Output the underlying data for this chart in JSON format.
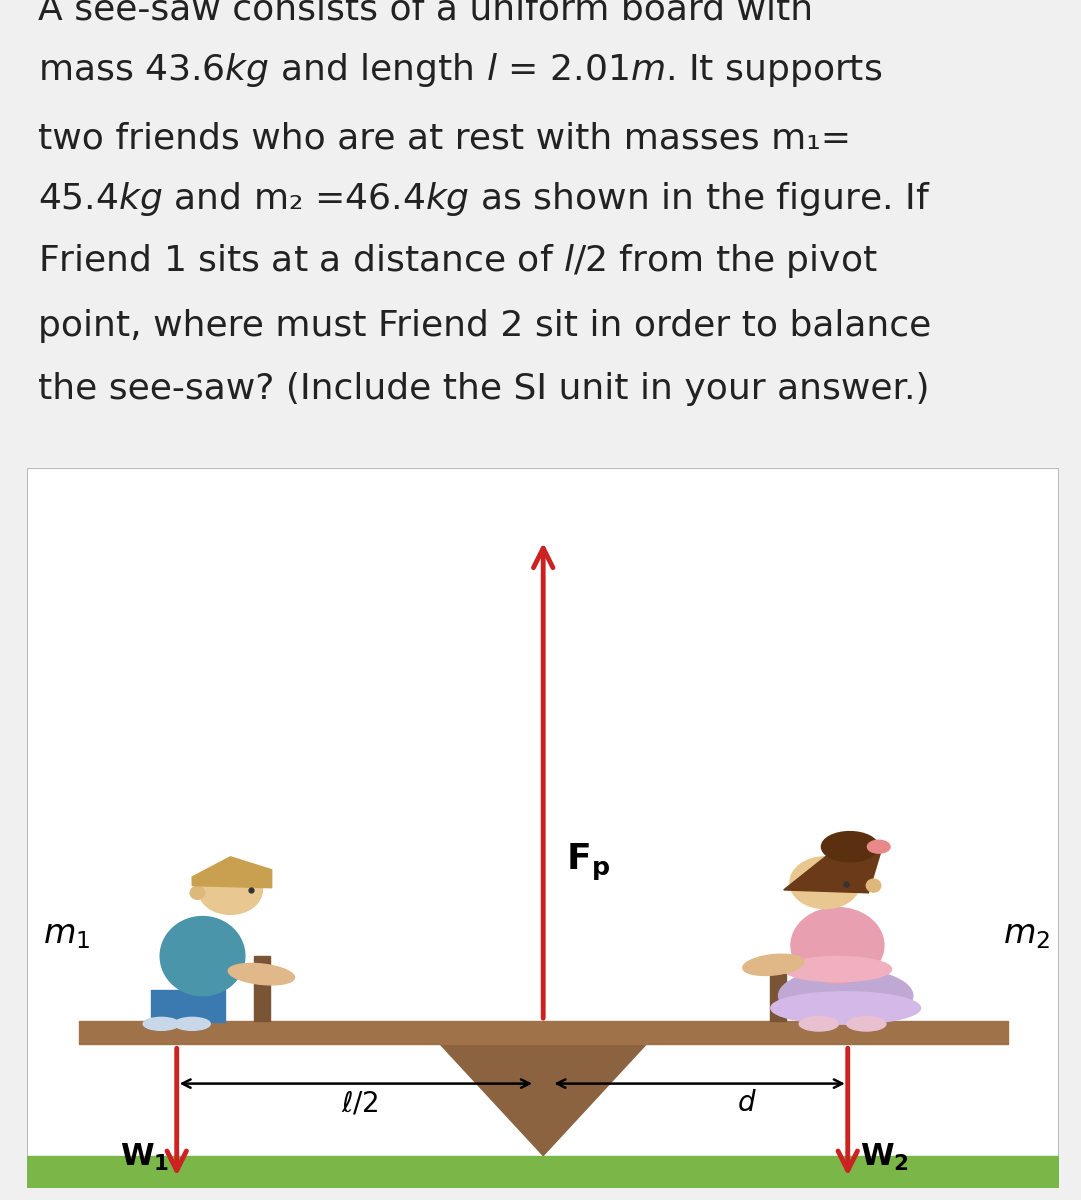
{
  "bg_color": "#f0f0f0",
  "text_bg": "#f0f0f0",
  "diagram_bg": "#ffffff",
  "board_color": "#a0724a",
  "pivot_color": "#8B6340",
  "ground_color": "#7ab648",
  "arrow_red": "#cc2222",
  "text_color": "#222222",
  "text_lines": [
    "A see-saw consists of a uniform board with",
    "mass 43.6$\\it{kg}$ and length $\\it{l}$ = 2.01$\\it{m}$. It supports",
    "two friends who are at rest with masses m₁=",
    "45.4$\\it{kg}$ and m₂ =46.4$\\it{kg}$ as shown in the figure. If",
    "Friend 1 sits at a distance of $\\it{l}$/2 from the pivot",
    "point, where must Friend 2 sit in order to balance",
    "the see-saw? (Include the SI unit in your answer.)"
  ],
  "font_size_text": 26,
  "font_size_diagram": 22,
  "font_size_bold": 20
}
